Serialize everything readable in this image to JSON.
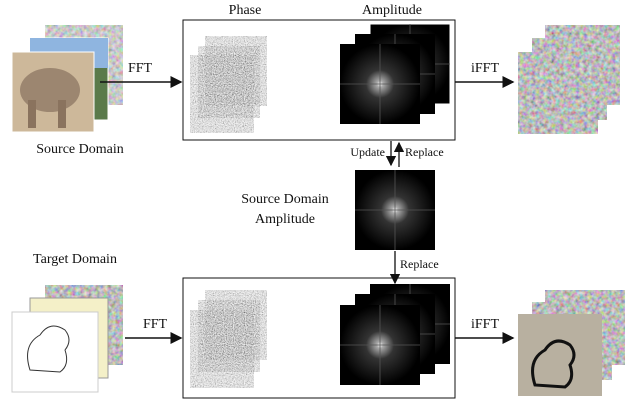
{
  "labels": {
    "phase": "Phase",
    "amplitude": "Amplitude",
    "source_domain": "Source Domain",
    "target_domain": "Target Domain",
    "source_amplitude": [
      "Source Domain",
      "Amplitude"
    ]
  },
  "arrows": {
    "top_fft": "FFT",
    "top_ifft": "iFFT",
    "bottom_fft": "FFT",
    "bottom_ifft": "iFFT",
    "update": "Update",
    "replace_up": "Replace",
    "replace_down": "Replace"
  }
}
